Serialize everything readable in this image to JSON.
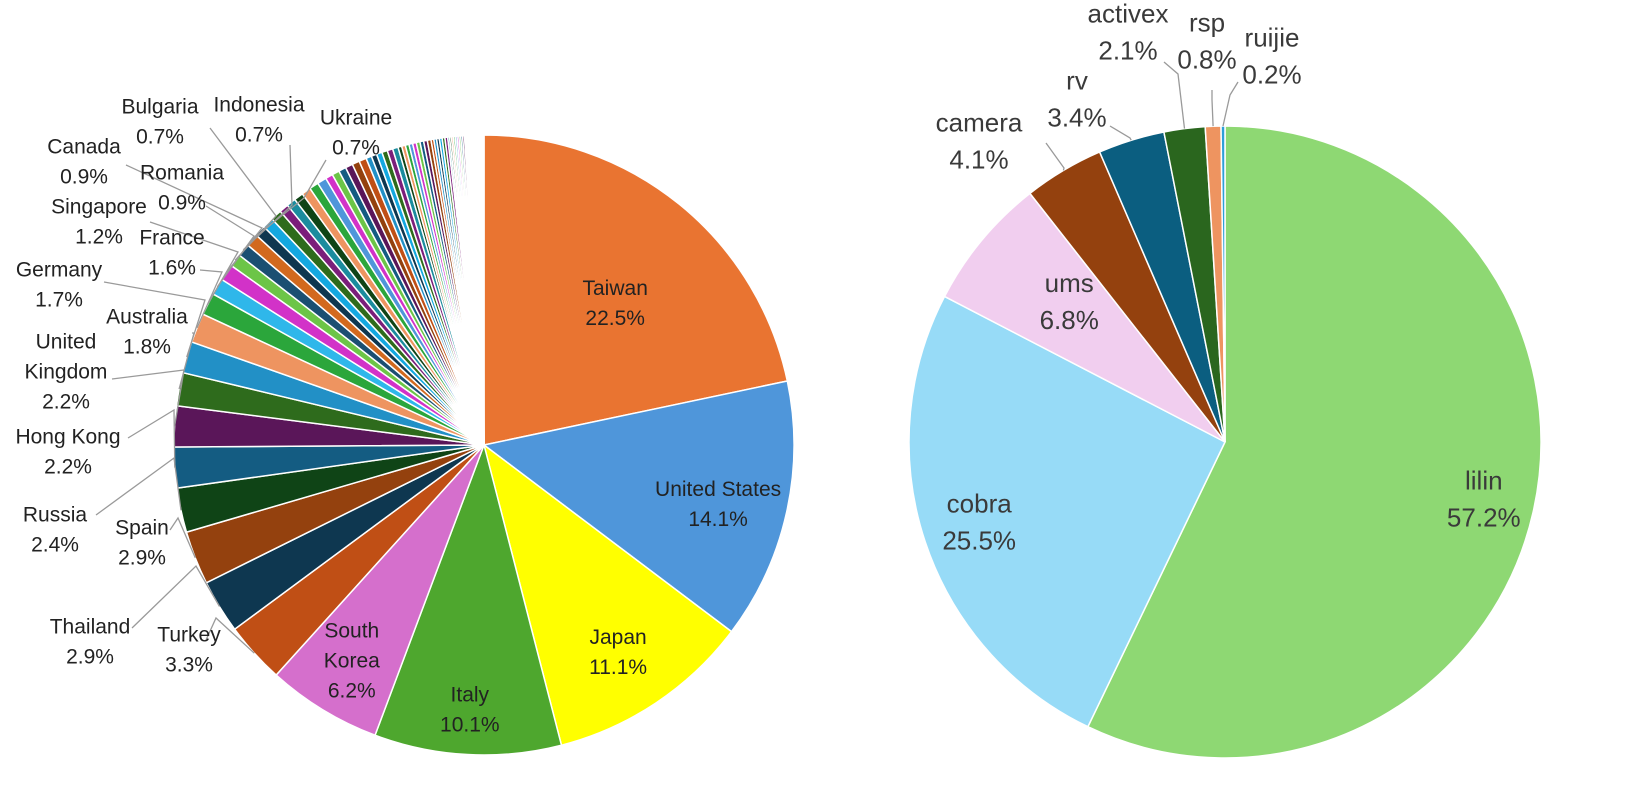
{
  "chart_data": [
    {
      "type": "pie",
      "title": "",
      "slices": [
        {
          "label": "Taiwan",
          "value": 22.5,
          "value_label": "22.5%",
          "color": "#E97431"
        },
        {
          "label": "United States",
          "value": 14.1,
          "value_label": "14.1%",
          "color": "#4F96DA"
        },
        {
          "label": "Japan",
          "value": 11.1,
          "value_label": "11.1%",
          "color": "#FFFF00"
        },
        {
          "label": "Italy",
          "value": 10.1,
          "value_label": "10.1%",
          "color": "#4EA72E"
        },
        {
          "label": "South Korea",
          "value": 6.2,
          "value_label": "6.2%",
          "color": "#D56FCC"
        },
        {
          "label": "Turkey",
          "value": 3.3,
          "value_label": "3.3%",
          "color": "#C04F15"
        },
        {
          "label": "Thailand",
          "value": 2.9,
          "value_label": "2.9%",
          "color": "#0E3750"
        },
        {
          "label": "Spain",
          "value": 2.9,
          "value_label": "2.9%",
          "color": "#94410E"
        },
        {
          "label": "Russia",
          "value": 2.4,
          "value_label": "2.4%",
          "color": "#0F4416"
        },
        {
          "label": "Hong Kong",
          "value": 2.2,
          "value_label": "2.2%",
          "color": "#145C82"
        },
        {
          "label": "United Kingdom",
          "value": 2.2,
          "value_label": "2.2%",
          "color": "#5A1659"
        },
        {
          "label": "Australia",
          "value": 1.8,
          "value_label": "1.8%",
          "color": "#2E6B1C"
        },
        {
          "label": "Germany",
          "value": 1.7,
          "value_label": "1.7%",
          "color": "#2290C6"
        },
        {
          "label": "France",
          "value": 1.6,
          "value_label": "1.6%",
          "color": "#EE9460"
        },
        {
          "label": "Singapore",
          "value": 1.2,
          "value_label": "1.2%",
          "color": "#2BA63B"
        },
        {
          "label": "Romania",
          "value": 0.9,
          "value_label": "0.9%",
          "color": "#2FB7EA"
        },
        {
          "label": "Canada",
          "value": 0.9,
          "value_label": "0.9%",
          "color": "#D232C8"
        },
        {
          "label": "Bulgaria",
          "value": 0.7,
          "value_label": "0.7%",
          "color": "#6CC547"
        },
        {
          "label": "Indonesia",
          "value": 0.7,
          "value_label": "0.7%",
          "color": "#1B4F72"
        },
        {
          "label": "Ukraine",
          "value": 0.7,
          "value_label": "0.7%",
          "color": "#D2691E"
        }
      ],
      "other_small_slices": [
        0.6,
        0.6,
        0.6,
        0.5,
        0.5,
        0.5,
        0.5,
        0.5,
        0.5,
        0.4,
        0.4,
        0.4,
        0.4,
        0.4,
        0.4,
        0.3,
        0.3,
        0.3,
        0.3,
        0.3,
        0.3,
        0.2,
        0.2,
        0.2,
        0.2,
        0.2,
        0.2,
        0.2,
        0.2,
        0.2,
        0.15,
        0.15,
        0.15,
        0.15,
        0.15,
        0.15,
        0.1,
        0.1,
        0.1,
        0.1,
        0.1,
        0.1,
        0.1,
        0.1,
        0.1,
        0.08,
        0.08,
        0.08,
        0.08,
        0.08,
        0.06,
        0.06,
        0.06,
        0.06,
        0.05,
        0.05,
        0.05,
        0.05,
        0.05,
        0.05,
        0.05,
        0.05
      ],
      "small_slice_colors": [
        "#0E3750",
        "#14A8E0",
        "#2E6B1C",
        "#7B1E7A",
        "#1B8C9E",
        "#0F4416",
        "#EE9460",
        "#2BA63B",
        "#4F96DA",
        "#D232C8",
        "#6CC547",
        "#145C82",
        "#5A1659",
        "#94410E",
        "#C04F15",
        "#2290C6"
      ]
    },
    {
      "type": "pie",
      "title": "",
      "slices": [
        {
          "label": "lilin",
          "value": 57.2,
          "value_label": "57.2%",
          "color": "#8ED873"
        },
        {
          "label": "cobra",
          "value": 25.5,
          "value_label": "25.5%",
          "color": "#97DBF7"
        },
        {
          "label": "ums",
          "value": 6.8,
          "value_label": "6.8%",
          "color": "#F1CEEF"
        },
        {
          "label": "camera",
          "value": 4.1,
          "value_label": "4.1%",
          "color": "#94410E"
        },
        {
          "label": "rv",
          "value": 3.4,
          "value_label": "3.4%",
          "color": "#0B5E80"
        },
        {
          "label": "activex",
          "value": 2.1,
          "value_label": "2.1%",
          "color": "#2A661E"
        },
        {
          "label": "rsp",
          "value": 0.8,
          "value_label": "0.8%",
          "color": "#EE9460"
        },
        {
          "label": "ruijie",
          "value": 0.2,
          "value_label": "0.2%",
          "color": "#2E9FD8"
        }
      ]
    }
  ]
}
